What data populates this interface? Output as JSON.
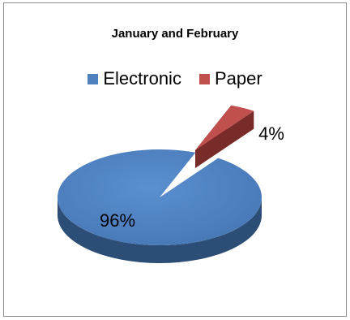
{
  "chart_data": {
    "type": "pie",
    "title": "January and February",
    "legend_position": "top",
    "slices": [
      {
        "label": "Electronic",
        "value": 96,
        "display": "96%",
        "color": "#4f81bd",
        "side_color": "#2c4d75"
      },
      {
        "label": "Paper",
        "value": 4,
        "display": "4%",
        "color": "#c0504d",
        "side_color": "#772c2a"
      }
    ]
  }
}
